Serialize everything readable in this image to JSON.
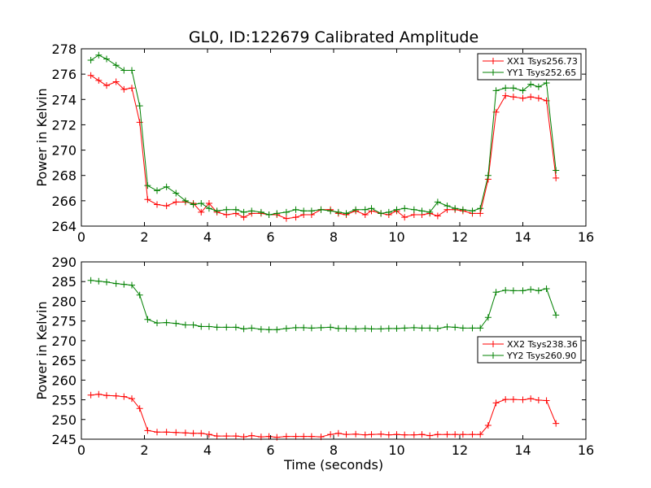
{
  "title": "GL0, ID:122679 Calibrated Amplitude",
  "chart_data": [
    {
      "type": "line",
      "title": "GL0, ID:122679 Calibrated Amplitude",
      "xlabel": "",
      "ylabel": "Power in Kelvin",
      "xlim": [
        0,
        16
      ],
      "ylim": [
        264,
        278
      ],
      "xticks": [
        0,
        2,
        4,
        6,
        8,
        10,
        12,
        14,
        16
      ],
      "yticks": [
        264,
        266,
        268,
        270,
        272,
        274,
        276,
        278
      ],
      "grid": false,
      "legend_position": "top-right",
      "x": [
        0.3,
        0.55,
        0.8,
        1.1,
        1.35,
        1.6,
        1.85,
        2.1,
        2.4,
        2.7,
        3.0,
        3.3,
        3.55,
        3.8,
        4.05,
        4.3,
        4.6,
        4.9,
        5.15,
        5.4,
        5.7,
        5.95,
        6.2,
        6.5,
        6.8,
        7.05,
        7.3,
        7.6,
        7.9,
        8.15,
        8.4,
        8.7,
        9.0,
        9.2,
        9.5,
        9.75,
        10.0,
        10.25,
        10.55,
        10.8,
        11.05,
        11.3,
        11.6,
        11.85,
        12.1,
        12.4,
        12.65,
        12.9,
        13.15,
        13.45,
        13.7,
        14.0,
        14.25,
        14.5,
        14.75,
        15.05
      ],
      "series": [
        {
          "name": "XX1 Tsys256.73",
          "color": "#ff0000",
          "values": [
            275.9,
            275.5,
            275.1,
            275.4,
            274.8,
            274.9,
            272.2,
            266.1,
            265.7,
            265.6,
            265.9,
            265.9,
            265.8,
            265.1,
            265.8,
            265.1,
            264.9,
            265.0,
            264.7,
            265.0,
            265.0,
            264.9,
            264.9,
            264.6,
            264.7,
            264.9,
            264.9,
            265.3,
            265.3,
            265.0,
            264.9,
            265.2,
            264.9,
            265.2,
            265.0,
            264.9,
            265.2,
            264.7,
            264.9,
            264.9,
            265.0,
            264.8,
            265.3,
            265.3,
            265.2,
            265.0,
            265.0,
            267.7,
            273.0,
            274.3,
            274.2,
            274.1,
            274.2,
            274.1,
            273.9,
            267.8
          ]
        },
        {
          "name": "YY1 Tsys252.65",
          "color": "#008000",
          "values": [
            277.1,
            277.5,
            277.2,
            276.7,
            276.3,
            276.3,
            273.5,
            267.2,
            266.8,
            267.1,
            266.6,
            266.0,
            265.7,
            265.8,
            265.4,
            265.2,
            265.3,
            265.3,
            265.1,
            265.2,
            265.1,
            264.9,
            265.0,
            265.1,
            265.3,
            265.2,
            265.2,
            265.3,
            265.2,
            265.1,
            265.0,
            265.3,
            265.3,
            265.4,
            265.0,
            265.1,
            265.3,
            265.4,
            265.3,
            265.2,
            265.1,
            265.9,
            265.6,
            265.4,
            265.3,
            265.2,
            265.4,
            268.0,
            274.7,
            274.9,
            274.9,
            274.7,
            275.2,
            275.0,
            275.3,
            268.4
          ]
        }
      ]
    },
    {
      "type": "line",
      "title": "",
      "xlabel": "Time (seconds)",
      "ylabel": "Power in Kelvin",
      "xlim": [
        0,
        16
      ],
      "ylim": [
        245,
        290
      ],
      "xticks": [
        0,
        2,
        4,
        6,
        8,
        10,
        12,
        14,
        16
      ],
      "yticks": [
        245,
        250,
        255,
        260,
        265,
        270,
        275,
        280,
        285,
        290
      ],
      "grid": false,
      "legend_position": "right",
      "x": [
        0.3,
        0.55,
        0.8,
        1.1,
        1.35,
        1.6,
        1.85,
        2.1,
        2.4,
        2.7,
        3.0,
        3.3,
        3.55,
        3.8,
        4.05,
        4.3,
        4.6,
        4.9,
        5.15,
        5.4,
        5.7,
        5.95,
        6.2,
        6.5,
        6.8,
        7.05,
        7.3,
        7.6,
        7.9,
        8.15,
        8.4,
        8.7,
        9.0,
        9.2,
        9.5,
        9.75,
        10.0,
        10.25,
        10.55,
        10.8,
        11.05,
        11.3,
        11.6,
        11.85,
        12.1,
        12.4,
        12.65,
        12.9,
        13.15,
        13.45,
        13.7,
        14.0,
        14.25,
        14.5,
        14.75,
        15.05
      ],
      "series": [
        {
          "name": "XX2 Tsys238.36",
          "color": "#ff0000",
          "values": [
            256.2,
            256.4,
            256.1,
            256.0,
            255.8,
            255.3,
            252.8,
            247.2,
            246.8,
            246.8,
            246.7,
            246.6,
            246.5,
            246.5,
            246.2,
            245.8,
            245.8,
            245.8,
            245.6,
            245.9,
            245.6,
            245.7,
            245.5,
            245.7,
            245.7,
            245.7,
            245.7,
            245.6,
            246.2,
            246.5,
            246.2,
            246.3,
            246.1,
            246.2,
            246.3,
            246.1,
            246.2,
            246.1,
            246.1,
            246.2,
            245.9,
            246.2,
            246.2,
            246.2,
            246.2,
            246.2,
            246.2,
            248.5,
            254.2,
            255.1,
            255.1,
            255.0,
            255.3,
            254.9,
            254.8,
            249.0
          ]
        },
        {
          "name": "YY2 Tsys260.90",
          "color": "#008000",
          "values": [
            285.3,
            285.1,
            284.9,
            284.5,
            284.3,
            284.1,
            281.6,
            275.4,
            274.5,
            274.6,
            274.4,
            274.0,
            274.0,
            273.6,
            273.6,
            273.4,
            273.4,
            273.4,
            273.0,
            273.2,
            272.9,
            272.8,
            272.8,
            273.1,
            273.3,
            273.3,
            273.2,
            273.3,
            273.4,
            273.1,
            273.1,
            273.0,
            273.1,
            273.0,
            273.0,
            273.1,
            273.1,
            273.2,
            273.3,
            273.2,
            273.2,
            273.1,
            273.5,
            273.4,
            273.2,
            273.2,
            273.2,
            275.9,
            282.3,
            282.8,
            282.7,
            282.7,
            283.0,
            282.7,
            283.2,
            276.5
          ]
        }
      ]
    }
  ]
}
